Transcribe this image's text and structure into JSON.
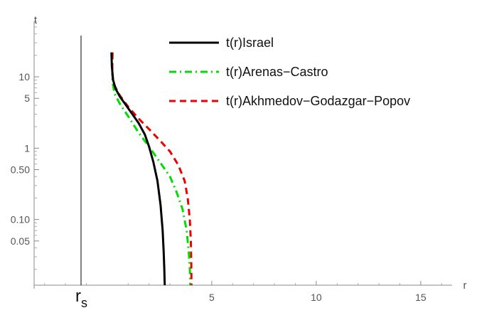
{
  "chart_data": {
    "type": "line",
    "xlabel": "r",
    "ylabel": "t",
    "y_scale": "log",
    "xlim": [
      -3.5,
      16.5
    ],
    "ylim": [
      0.012,
      60
    ],
    "x_ticks": [
      {
        "value": 5,
        "label": "5"
      },
      {
        "value": 10,
        "label": "10"
      },
      {
        "value": 15,
        "label": "15"
      }
    ],
    "x_marker": {
      "value": 0,
      "label_main": "r",
      "label_sub": "s"
    },
    "y_ticks": [
      {
        "value": 10,
        "label": "10"
      },
      {
        "value": 5,
        "label": "5"
      },
      {
        "value": 1,
        "label": "1"
      },
      {
        "value": 0.5,
        "label": "0.50"
      },
      {
        "value": 0.1,
        "label": "0.10"
      },
      {
        "value": 0.05,
        "label": "0.05"
      }
    ],
    "legend_position": "top-right",
    "series": [
      {
        "name": "t(r)Israel",
        "color": "#000000",
        "style": "solid",
        "points": [
          [
            0.2,
            22
          ],
          [
            0.22,
            14
          ],
          [
            0.28,
            9
          ],
          [
            0.4,
            6.8
          ],
          [
            0.6,
            5.3
          ],
          [
            0.9,
            4.0
          ],
          [
            1.2,
            3.0
          ],
          [
            1.5,
            2.25
          ],
          [
            1.8,
            1.55
          ],
          [
            2.0,
            1.05
          ],
          [
            2.2,
            0.65
          ],
          [
            2.4,
            0.35
          ],
          [
            2.55,
            0.16
          ],
          [
            2.65,
            0.07
          ],
          [
            2.7,
            0.035
          ],
          [
            2.73,
            0.02
          ],
          [
            2.75,
            0.012
          ]
        ]
      },
      {
        "name": "t(r)Arenas−Castro",
        "color": "#00dd00",
        "style": "dashdot",
        "points": [
          [
            0.25,
            22
          ],
          [
            0.24,
            12
          ],
          [
            0.25,
            8.5
          ],
          [
            0.35,
            5.8
          ],
          [
            0.6,
            4.2
          ],
          [
            1.0,
            2.8
          ],
          [
            1.5,
            1.65
          ],
          [
            2.0,
            1.05
          ],
          [
            2.5,
            0.65
          ],
          [
            3.0,
            0.4
          ],
          [
            3.3,
            0.25
          ],
          [
            3.6,
            0.14
          ],
          [
            3.8,
            0.07
          ],
          [
            3.9,
            0.035
          ],
          [
            3.95,
            0.02
          ],
          [
            3.97,
            0.012
          ]
        ]
      },
      {
        "name": "t(r)Akhmedov−Godazgar−Popov",
        "color": "#ee0000",
        "style": "dashed",
        "points": [
          [
            0.25,
            22
          ],
          [
            0.24,
            16
          ],
          [
            0.24,
            11
          ],
          [
            0.3,
            8
          ],
          [
            0.6,
            5.5
          ],
          [
            1.0,
            3.8
          ],
          [
            1.5,
            2.6
          ],
          [
            2.0,
            1.85
          ],
          [
            2.5,
            1.3
          ],
          [
            3.0,
            0.9
          ],
          [
            3.4,
            0.58
          ],
          [
            3.7,
            0.35
          ],
          [
            3.85,
            0.2
          ],
          [
            3.95,
            0.1
          ],
          [
            4.0,
            0.05
          ],
          [
            4.02,
            0.025
          ],
          [
            4.03,
            0.012
          ]
        ]
      }
    ]
  }
}
